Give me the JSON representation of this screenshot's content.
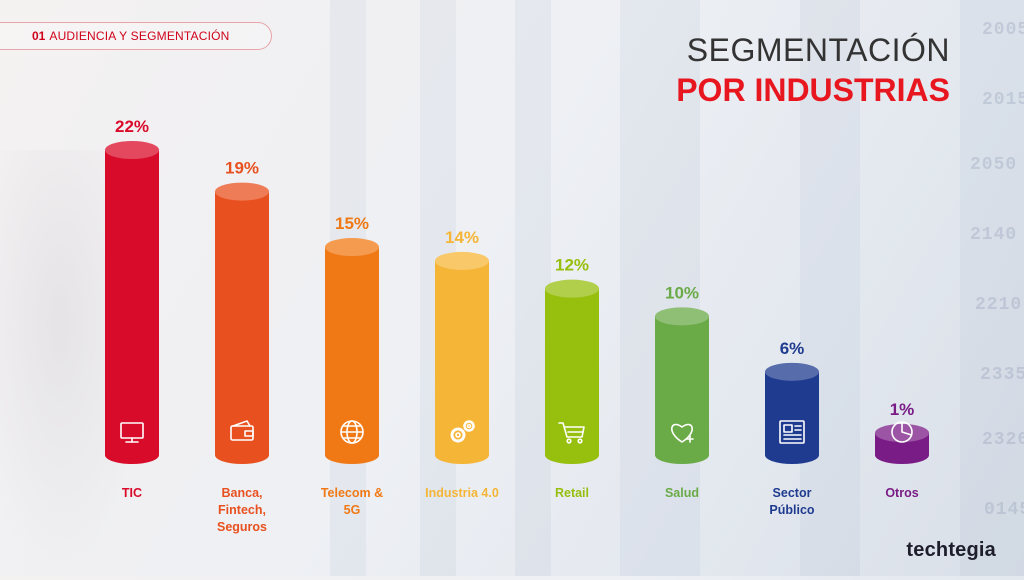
{
  "header": {
    "section_number": "01",
    "section_label": "AUDIENCIA Y SEGMENTACIÓN",
    "title_line1": "SEGMENTACIÓN",
    "title_line2": "POR INDUSTRIAS"
  },
  "brand": "techtegia",
  "chart_data": {
    "type": "bar",
    "categories": [
      "TIC",
      "Banca, Fintech, Seguros",
      "Telecom & 5G",
      "Industria 4.0",
      "Retail",
      "Salud",
      "Sector Público",
      "Otros"
    ],
    "category_lines": [
      [
        "TIC"
      ],
      [
        "Banca,",
        "Fintech,",
        "Seguros"
      ],
      [
        "Telecom &",
        "5G"
      ],
      [
        "Industria 4.0"
      ],
      [
        "Retail"
      ],
      [
        "Salud"
      ],
      [
        "Sector",
        "Público"
      ],
      [
        "Otros"
      ]
    ],
    "values": [
      22,
      19,
      15,
      14,
      12,
      10,
      6,
      1
    ],
    "value_labels": [
      "22%",
      "19%",
      "15%",
      "14%",
      "12%",
      "10%",
      "6%",
      "1%"
    ],
    "colors": [
      "#d90b2a",
      "#e8511f",
      "#f07915",
      "#f5b537",
      "#97bf0d",
      "#6aaa47",
      "#1f3b8f",
      "#7a1c86"
    ],
    "icons": [
      "monitor-icon",
      "wallet-icon",
      "globe-icon",
      "gears-icon",
      "cart-icon",
      "heart-icon",
      "newspaper-icon",
      "pie-chart-icon"
    ],
    "unit": "%",
    "ylim": [
      0,
      22
    ],
    "title": "",
    "xlabel": "",
    "ylabel": "",
    "grid": false,
    "legend": "none"
  }
}
